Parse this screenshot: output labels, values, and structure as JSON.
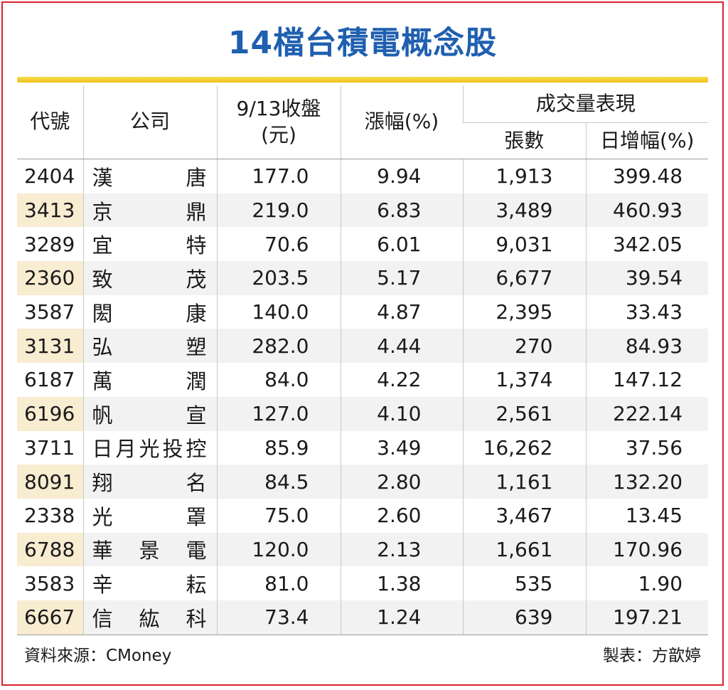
{
  "title": "14檔台積電概念股",
  "headers": {
    "code": "代號",
    "company": "公司",
    "close_line1": "9/13收盤",
    "close_line2": "(元)",
    "change": "漲幅(%)",
    "volume_group": "成交量表現",
    "lots": "張數",
    "daily_increase": "日增幅(%)"
  },
  "rows": [
    {
      "code": "2404",
      "name": [
        "漢",
        "唐"
      ],
      "close": "177.0",
      "change": "9.94",
      "lots": "1,913",
      "increase": "399.48"
    },
    {
      "code": "3413",
      "name": [
        "京",
        "鼎"
      ],
      "close": "219.0",
      "change": "6.83",
      "lots": "3,489",
      "increase": "460.93"
    },
    {
      "code": "3289",
      "name": [
        "宜",
        "特"
      ],
      "close": "70.6",
      "change": "6.01",
      "lots": "9,031",
      "increase": "342.05"
    },
    {
      "code": "2360",
      "name": [
        "致",
        "茂"
      ],
      "close": "203.5",
      "change": "5.17",
      "lots": "6,677",
      "increase": "39.54"
    },
    {
      "code": "3587",
      "name": [
        "閎",
        "康"
      ],
      "close": "140.0",
      "change": "4.87",
      "lots": "2,395",
      "increase": "33.43"
    },
    {
      "code": "3131",
      "name": [
        "弘",
        "塑"
      ],
      "close": "282.0",
      "change": "4.44",
      "lots": "270",
      "increase": "84.93"
    },
    {
      "code": "6187",
      "name": [
        "萬",
        "潤"
      ],
      "close": "84.0",
      "change": "4.22",
      "lots": "1,374",
      "increase": "147.12"
    },
    {
      "code": "6196",
      "name": [
        "帆",
        "宣"
      ],
      "close": "127.0",
      "change": "4.10",
      "lots": "2,561",
      "increase": "222.14"
    },
    {
      "code": "3711",
      "name": [
        "日",
        "月",
        "光",
        "投",
        "控"
      ],
      "close": "85.9",
      "change": "3.49",
      "lots": "16,262",
      "increase": "37.56"
    },
    {
      "code": "8091",
      "name": [
        "翔",
        "名"
      ],
      "close": "84.5",
      "change": "2.80",
      "lots": "1,161",
      "increase": "132.20"
    },
    {
      "code": "2338",
      "name": [
        "光",
        "罩"
      ],
      "close": "75.0",
      "change": "2.60",
      "lots": "3,467",
      "increase": "13.45"
    },
    {
      "code": "6788",
      "name": [
        "華",
        "景",
        "電"
      ],
      "close": "120.0",
      "change": "2.13",
      "lots": "1,661",
      "increase": "170.96"
    },
    {
      "code": "3583",
      "name": [
        "辛",
        "耘"
      ],
      "close": "81.0",
      "change": "1.38",
      "lots": "535",
      "increase": "1.90"
    },
    {
      "code": "6667",
      "name": [
        "信",
        "紘",
        "科"
      ],
      "close": "73.4",
      "change": "1.24",
      "lots": "639",
      "increase": "197.21"
    }
  ],
  "footer": {
    "source": "資料來源：CMoney",
    "maker": "製表：方歆婷"
  },
  "colors": {
    "title": "#1f5fb0",
    "border": "#d9232e",
    "accent_bar": "#efc21e",
    "code_highlight": "#f8ecd1"
  }
}
